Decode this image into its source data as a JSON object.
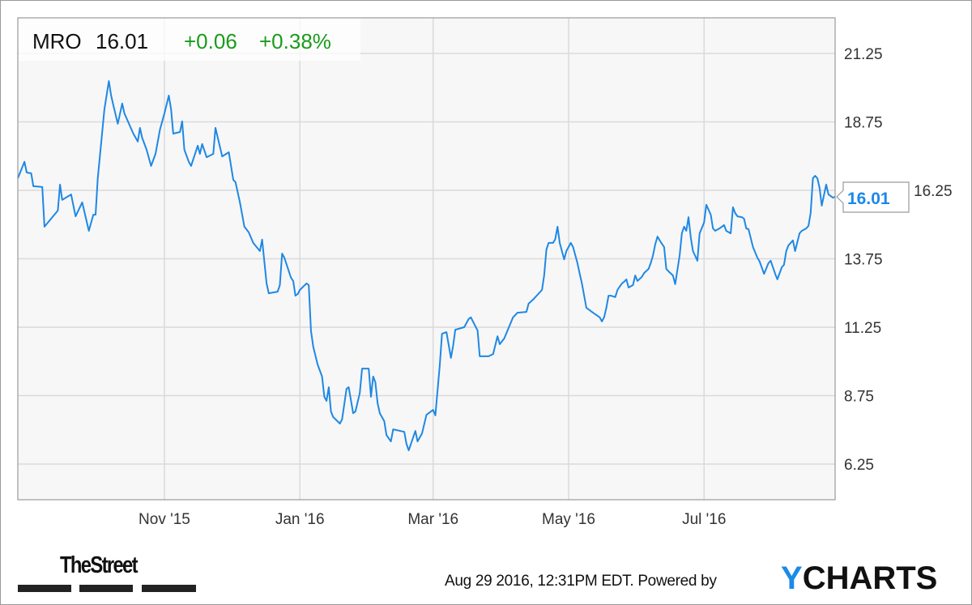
{
  "header": {
    "ticker": "MRO",
    "price": "16.01",
    "change": "+0.06",
    "change_pct": "+0.38%",
    "up_color": "#1a9c1a"
  },
  "last_value_label": "16.01",
  "footer": {
    "publisher_logo": "TheStreet",
    "timestamp": "Aug 29 2016, 12:31PM EDT.",
    "powered_by": "Powered by",
    "brand_logo": "YCHARTS",
    "brand_logo_accent": "Y",
    "brand_logo_rest": "CHARTS"
  },
  "chart_data": {
    "type": "line",
    "title": "",
    "xlabel": "",
    "ylabel": "",
    "xlim": [
      "2015-08-27",
      "2016-08-29"
    ],
    "ylim": [
      4.95,
      22.55
    ],
    "grid": true,
    "y_axis_position": "right",
    "line_color": "#1e88e5",
    "x_ticks": [
      {
        "date": "2015-11-01",
        "label": "Nov '15"
      },
      {
        "date": "2016-01-01",
        "label": "Jan '16"
      },
      {
        "date": "2016-03-01",
        "label": "Mar '16"
      },
      {
        "date": "2016-05-01",
        "label": "May '16"
      },
      {
        "date": "2016-07-01",
        "label": "Jul '16"
      }
    ],
    "y_ticks": [
      {
        "value": 21.25,
        "label": "21.25"
      },
      {
        "value": 18.75,
        "label": "18.75"
      },
      {
        "value": 16.25,
        "label": "16.25"
      },
      {
        "value": 13.75,
        "label": "13.75"
      },
      {
        "value": 11.25,
        "label": "11.25"
      },
      {
        "value": 8.75,
        "label": "8.75"
      },
      {
        "value": 6.25,
        "label": "6.25"
      }
    ],
    "series": [
      {
        "points": [
          [
            "2015-08-27",
            16.69
          ],
          [
            "2015-08-30",
            17.29
          ],
          [
            "2015-08-31",
            16.9
          ],
          [
            "2015-09-02",
            16.87
          ],
          [
            "2015-09-03",
            16.4
          ],
          [
            "2015-09-07",
            16.37
          ],
          [
            "2015-09-08",
            14.92
          ],
          [
            "2015-09-14",
            15.51
          ],
          [
            "2015-09-15",
            16.46
          ],
          [
            "2015-09-16",
            15.9
          ],
          [
            "2015-09-20",
            16.1
          ],
          [
            "2015-09-22",
            15.3
          ],
          [
            "2015-09-25",
            15.81
          ],
          [
            "2015-09-28",
            14.77
          ],
          [
            "2015-09-30",
            15.36
          ],
          [
            "2015-10-01",
            15.36
          ],
          [
            "2015-10-02",
            16.69
          ],
          [
            "2015-10-05",
            19.21
          ],
          [
            "2015-10-07",
            20.24
          ],
          [
            "2015-10-08",
            19.71
          ],
          [
            "2015-10-09",
            19.36
          ],
          [
            "2015-10-11",
            18.68
          ],
          [
            "2015-10-13",
            19.42
          ],
          [
            "2015-10-14",
            19.06
          ],
          [
            "2015-10-18",
            18.32
          ],
          [
            "2015-10-20",
            18.03
          ],
          [
            "2015-10-21",
            18.53
          ],
          [
            "2015-10-22",
            18.17
          ],
          [
            "2015-10-24",
            17.73
          ],
          [
            "2015-10-26",
            17.14
          ],
          [
            "2015-10-28",
            17.58
          ],
          [
            "2015-10-30",
            18.47
          ],
          [
            "2015-11-01",
            19.06
          ],
          [
            "2015-11-03",
            19.71
          ],
          [
            "2015-11-04",
            19.21
          ],
          [
            "2015-11-05",
            18.32
          ],
          [
            "2015-11-08",
            18.38
          ],
          [
            "2015-11-09",
            18.77
          ],
          [
            "2015-11-10",
            17.73
          ],
          [
            "2015-11-12",
            17.29
          ],
          [
            "2015-11-13",
            17.14
          ],
          [
            "2015-11-16",
            17.88
          ],
          [
            "2015-11-17",
            17.58
          ],
          [
            "2015-11-18",
            17.94
          ],
          [
            "2015-11-20",
            17.46
          ],
          [
            "2015-11-23",
            17.58
          ],
          [
            "2015-11-24",
            18.53
          ],
          [
            "2015-11-27",
            17.49
          ],
          [
            "2015-11-30",
            17.64
          ],
          [
            "2015-12-02",
            16.63
          ],
          [
            "2015-12-03",
            16.55
          ],
          [
            "2015-12-05",
            15.81
          ],
          [
            "2015-12-07",
            14.92
          ],
          [
            "2015-12-09",
            14.71
          ],
          [
            "2015-12-11",
            14.33
          ],
          [
            "2015-12-14",
            14.03
          ],
          [
            "2015-12-15",
            14.45
          ],
          [
            "2015-12-17",
            12.85
          ],
          [
            "2015-12-18",
            12.49
          ],
          [
            "2015-12-22",
            12.55
          ],
          [
            "2015-12-23",
            12.79
          ],
          [
            "2015-12-24",
            13.94
          ],
          [
            "2015-12-25",
            13.79
          ],
          [
            "2015-12-28",
            13.06
          ],
          [
            "2015-12-29",
            12.94
          ],
          [
            "2015-12-30",
            12.4
          ],
          [
            "2015-12-31",
            12.46
          ],
          [
            "2016-01-01",
            12.61
          ],
          [
            "2016-01-04",
            12.85
          ],
          [
            "2016-01-05",
            12.79
          ],
          [
            "2016-01-06",
            11.13
          ],
          [
            "2016-01-07",
            10.54
          ],
          [
            "2016-01-09",
            9.89
          ],
          [
            "2016-01-11",
            9.45
          ],
          [
            "2016-01-12",
            8.71
          ],
          [
            "2016-01-13",
            8.56
          ],
          [
            "2016-01-14",
            9.06
          ],
          [
            "2016-01-15",
            8.17
          ],
          [
            "2016-01-16",
            7.97
          ],
          [
            "2016-01-19",
            7.73
          ],
          [
            "2016-01-20",
            7.88
          ],
          [
            "2016-01-22",
            9.0
          ],
          [
            "2016-01-23",
            9.06
          ],
          [
            "2016-01-25",
            8.11
          ],
          [
            "2016-01-26",
            8.17
          ],
          [
            "2016-01-28",
            8.85
          ],
          [
            "2016-01-29",
            9.74
          ],
          [
            "2016-02-01",
            9.74
          ],
          [
            "2016-02-02",
            8.71
          ],
          [
            "2016-02-03",
            9.45
          ],
          [
            "2016-02-04",
            9.24
          ],
          [
            "2016-02-05",
            8.47
          ],
          [
            "2016-02-06",
            8.11
          ],
          [
            "2016-02-08",
            7.82
          ],
          [
            "2016-02-09",
            7.31
          ],
          [
            "2016-02-11",
            7.08
          ],
          [
            "2016-02-12",
            7.52
          ],
          [
            "2016-02-17",
            7.43
          ],
          [
            "2016-02-18",
            6.99
          ],
          [
            "2016-02-19",
            6.75
          ],
          [
            "2016-02-22",
            7.46
          ],
          [
            "2016-02-23",
            7.08
          ],
          [
            "2016-02-25",
            7.37
          ],
          [
            "2016-02-27",
            8.05
          ],
          [
            "2016-03-01",
            8.23
          ],
          [
            "2016-03-02",
            8.03
          ],
          [
            "2016-03-04",
            9.89
          ],
          [
            "2016-03-05",
            11.01
          ],
          [
            "2016-03-07",
            11.07
          ],
          [
            "2016-03-09",
            10.13
          ],
          [
            "2016-03-10",
            10.57
          ],
          [
            "2016-03-11",
            11.16
          ],
          [
            "2016-03-15",
            11.25
          ],
          [
            "2016-03-17",
            11.55
          ],
          [
            "2016-03-18",
            11.61
          ],
          [
            "2016-03-21",
            11.13
          ],
          [
            "2016-03-22",
            10.19
          ],
          [
            "2016-03-26",
            10.19
          ],
          [
            "2016-03-28",
            10.27
          ],
          [
            "2016-03-30",
            10.92
          ],
          [
            "2016-03-31",
            10.63
          ],
          [
            "2016-04-02",
            10.84
          ],
          [
            "2016-04-06",
            11.61
          ],
          [
            "2016-04-08",
            11.78
          ],
          [
            "2016-04-12",
            11.81
          ],
          [
            "2016-04-13",
            12.11
          ],
          [
            "2016-04-15",
            12.26
          ],
          [
            "2016-04-19",
            12.61
          ],
          [
            "2016-04-20",
            13.14
          ],
          [
            "2016-04-21",
            14.09
          ],
          [
            "2016-04-22",
            14.33
          ],
          [
            "2016-04-24",
            14.33
          ],
          [
            "2016-04-25",
            14.47
          ],
          [
            "2016-04-26",
            14.92
          ],
          [
            "2016-04-27",
            14.33
          ],
          [
            "2016-04-29",
            13.73
          ],
          [
            "2016-04-30",
            14.03
          ],
          [
            "2016-05-02",
            14.33
          ],
          [
            "2016-05-03",
            14.18
          ],
          [
            "2016-05-05",
            13.59
          ],
          [
            "2016-05-06",
            13.2
          ],
          [
            "2016-05-07",
            12.85
          ],
          [
            "2016-05-09",
            11.96
          ],
          [
            "2016-05-12",
            11.78
          ],
          [
            "2016-05-15",
            11.61
          ],
          [
            "2016-05-16",
            11.46
          ],
          [
            "2016-05-17",
            11.61
          ],
          [
            "2016-05-18",
            11.96
          ],
          [
            "2016-05-19",
            12.4
          ],
          [
            "2016-05-20",
            12.4
          ],
          [
            "2016-05-22",
            12.35
          ],
          [
            "2016-05-23",
            12.61
          ],
          [
            "2016-05-25",
            12.85
          ],
          [
            "2016-05-26",
            12.91
          ],
          [
            "2016-05-27",
            13.0
          ],
          [
            "2016-05-28",
            12.7
          ],
          [
            "2016-05-30",
            12.79
          ],
          [
            "2016-05-31",
            13.14
          ],
          [
            "2016-06-01",
            12.94
          ],
          [
            "2016-06-03",
            13.09
          ],
          [
            "2016-06-04",
            13.23
          ],
          [
            "2016-06-06",
            13.38
          ],
          [
            "2016-06-07",
            13.59
          ],
          [
            "2016-06-08",
            13.88
          ],
          [
            "2016-06-09",
            14.27
          ],
          [
            "2016-06-10",
            14.56
          ],
          [
            "2016-06-11",
            14.42
          ],
          [
            "2016-06-13",
            14.18
          ],
          [
            "2016-06-14",
            13.38
          ],
          [
            "2016-06-15",
            13.29
          ],
          [
            "2016-06-17",
            13.14
          ],
          [
            "2016-06-18",
            12.82
          ],
          [
            "2016-06-20",
            13.88
          ],
          [
            "2016-06-21",
            14.68
          ],
          [
            "2016-06-22",
            14.92
          ],
          [
            "2016-06-23",
            14.77
          ],
          [
            "2016-06-24",
            15.27
          ],
          [
            "2016-06-25",
            14.53
          ],
          [
            "2016-06-26",
            14.03
          ],
          [
            "2016-06-28",
            13.68
          ],
          [
            "2016-06-29",
            14.68
          ],
          [
            "2016-07-01",
            15.07
          ],
          [
            "2016-07-02",
            15.72
          ],
          [
            "2016-07-04",
            15.36
          ],
          [
            "2016-07-05",
            14.86
          ],
          [
            "2016-07-06",
            14.77
          ],
          [
            "2016-07-08",
            14.86
          ],
          [
            "2016-07-10",
            14.98
          ],
          [
            "2016-07-11",
            14.77
          ],
          [
            "2016-07-13",
            14.68
          ],
          [
            "2016-07-14",
            15.63
          ],
          [
            "2016-07-15",
            15.42
          ],
          [
            "2016-07-16",
            15.3
          ],
          [
            "2016-07-18",
            15.27
          ],
          [
            "2016-07-19",
            15.21
          ],
          [
            "2016-07-20",
            14.86
          ],
          [
            "2016-07-21",
            14.83
          ],
          [
            "2016-07-23",
            14.18
          ],
          [
            "2016-07-25",
            13.79
          ],
          [
            "2016-07-26",
            13.65
          ],
          [
            "2016-07-28",
            13.2
          ],
          [
            "2016-07-30",
            13.59
          ],
          [
            "2016-07-31",
            13.68
          ],
          [
            "2016-08-02",
            13.2
          ],
          [
            "2016-08-03",
            13.0
          ],
          [
            "2016-08-05",
            13.44
          ],
          [
            "2016-08-06",
            13.53
          ],
          [
            "2016-08-07",
            14.03
          ],
          [
            "2016-08-08",
            14.24
          ],
          [
            "2016-08-09",
            14.33
          ],
          [
            "2016-08-10",
            14.42
          ],
          [
            "2016-08-11",
            14.03
          ],
          [
            "2016-08-13",
            14.68
          ],
          [
            "2016-08-14",
            14.77
          ],
          [
            "2016-08-16",
            14.86
          ],
          [
            "2016-08-17",
            14.95
          ],
          [
            "2016-08-18",
            15.42
          ],
          [
            "2016-08-19",
            16.69
          ],
          [
            "2016-08-20",
            16.78
          ],
          [
            "2016-08-21",
            16.69
          ],
          [
            "2016-08-22",
            16.34
          ],
          [
            "2016-08-23",
            15.69
          ],
          [
            "2016-08-25",
            16.46
          ],
          [
            "2016-08-26",
            16.1
          ],
          [
            "2016-08-28",
            15.98
          ],
          [
            "2016-08-29",
            16.01
          ]
        ]
      }
    ]
  }
}
